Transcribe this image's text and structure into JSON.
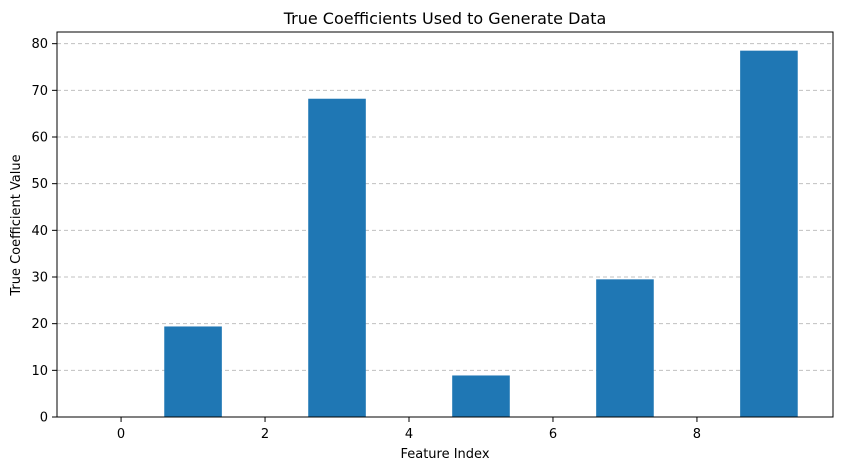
{
  "chart_data": {
    "type": "bar",
    "title": "True Coefficients Used to Generate Data",
    "xlabel": "Feature Index",
    "ylabel": "True Coefficient Value",
    "x": [
      0,
      1,
      2,
      3,
      4,
      5,
      6,
      7,
      8,
      9
    ],
    "values": [
      0,
      19.4,
      0,
      68.2,
      0,
      8.9,
      0,
      29.5,
      0,
      78.5
    ],
    "xlim": [
      -0.89,
      9.89
    ],
    "ylim": [
      0,
      82.5
    ],
    "x_ticks": [
      0,
      2,
      4,
      6,
      8
    ],
    "y_ticks": [
      0,
      10,
      20,
      30,
      40,
      50,
      60,
      70,
      80
    ],
    "bar_width": 0.8,
    "bar_color": "#1f77b4",
    "grid": {
      "axis": "y",
      "style": "dashed",
      "color": "#c0c0c0"
    }
  }
}
